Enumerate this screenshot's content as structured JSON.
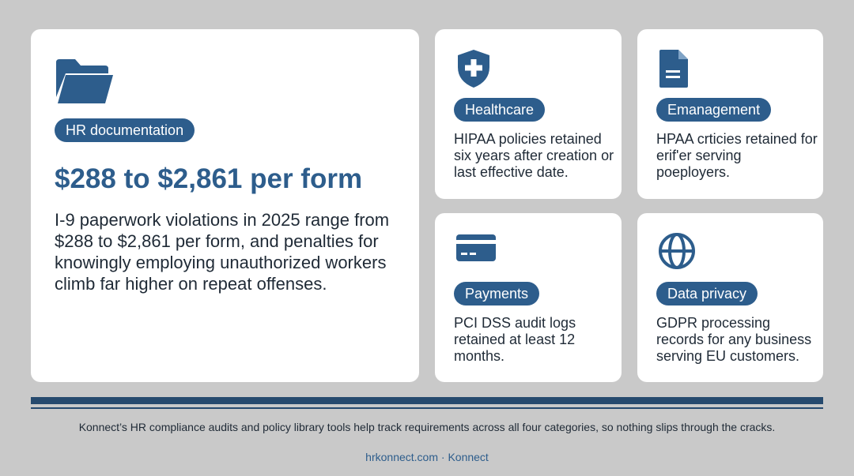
{
  "main": {
    "icon": "folder-icon",
    "badge": "HR documentation",
    "headline": "$288 to $2,861 per form",
    "body": "I-9 paperwork violations in 2025 range from $288 to $2,861 per form, and penalties for knowingly employing unauthorized workers climb far higher on repeat offenses."
  },
  "cards": {
    "healthcare": {
      "icon": "shield-plus-icon",
      "badge": "Healthcare",
      "text": "HIPAA policies retained six years after creation or last effective date."
    },
    "emanagement": {
      "icon": "document-icon",
      "badge": "Emanagement",
      "text": "HPAA crticies retained for erif'er serving poeployers."
    },
    "payments": {
      "icon": "credit-card-icon",
      "badge": "Payments",
      "text": "PCI DSS audit logs retained at least 12 months."
    },
    "privacy": {
      "icon": "globe-icon",
      "badge": "Data privacy",
      "text": "GDPR processing records for any business serving EU customers."
    }
  },
  "footer": {
    "text": "Konnect’s HR compliance audits and policy library tools help track requirements across all four categories, so nothing slips through the cracks.",
    "site": "hrkonnect.com",
    "separator": "·",
    "brand": "Konnect"
  },
  "colors": {
    "accent": "#2d5d8c",
    "background": "#c9c9c9",
    "rule": "#264a6e"
  }
}
